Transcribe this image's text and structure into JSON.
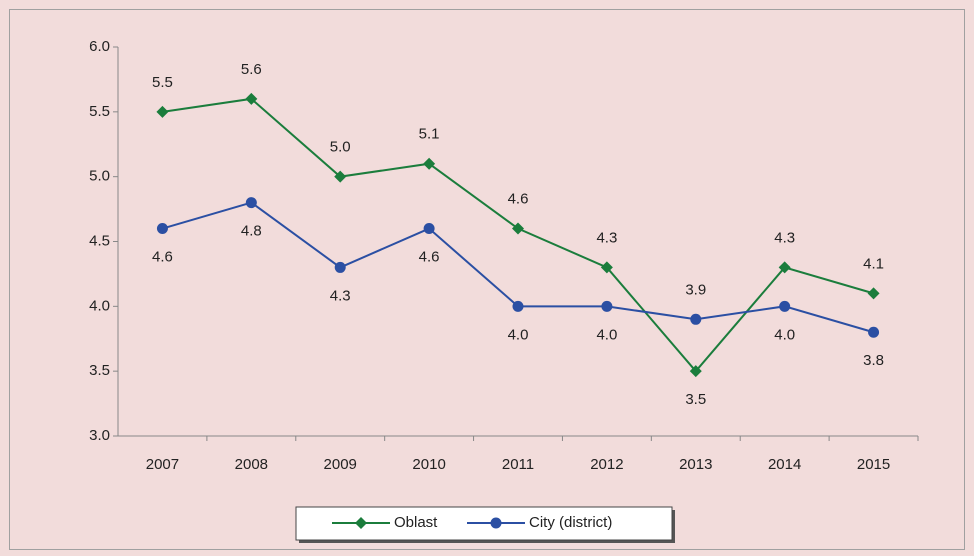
{
  "chart_data": {
    "type": "line",
    "categories": [
      "2007",
      "2008",
      "2009",
      "2010",
      "2011",
      "2012",
      "2013",
      "2014",
      "2015"
    ],
    "series": [
      {
        "name": "Oblast",
        "color": "#1b7d3c",
        "marker": "diamond",
        "values": [
          5.5,
          5.6,
          5.0,
          5.1,
          4.6,
          4.3,
          3.5,
          4.3,
          4.1
        ],
        "value_labels": [
          "5.5",
          "5.6",
          "5.0",
          "5.1",
          "4.6",
          "4.3",
          "3.5",
          "4.3",
          "4.1"
        ]
      },
      {
        "name": "City (district)",
        "color": "#2b4fa3",
        "marker": "circle",
        "values": [
          4.6,
          4.8,
          4.3,
          4.6,
          4.0,
          4.0,
          3.9,
          4.0,
          3.8
        ],
        "value_labels": [
          "4.6",
          "4.8",
          "4.3",
          "4.6",
          "4.0",
          "4.0",
          "3.9",
          "4.0",
          "3.8"
        ]
      }
    ],
    "ylim": [
      3.0,
      6.0
    ],
    "yticks": [
      {
        "value": 3.0,
        "label": "3.0"
      },
      3.5,
      {
        "value": 4.0,
        "label": "4.0"
      },
      4.5,
      {
        "value": 5.0,
        "label": "5.0"
      },
      5.5,
      {
        "value": 6.0,
        "label": "6.0"
      }
    ],
    "legend": "bottom"
  }
}
